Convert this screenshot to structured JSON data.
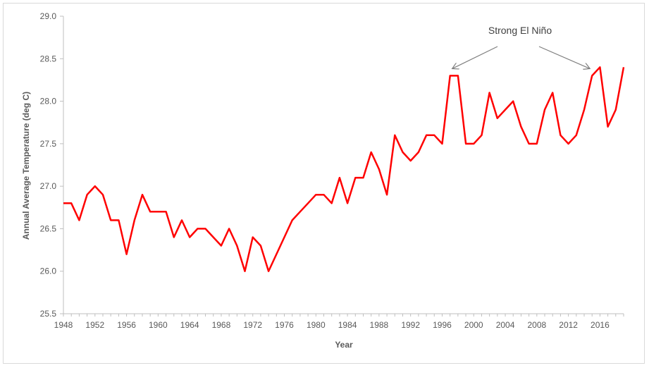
{
  "chart_data": {
    "type": "line",
    "title": "",
    "xlabel": "Year",
    "ylabel": "Annual Average Temperature (deg C)",
    "xlim": [
      1948,
      2019
    ],
    "ylim": [
      25.5,
      29.0
    ],
    "y_ticks": [
      "25.5",
      "26.0",
      "26.5",
      "27.0",
      "27.5",
      "28.0",
      "28.5",
      "29.0"
    ],
    "x_ticks": [
      "1948",
      "1952",
      "1956",
      "1960",
      "1964",
      "1968",
      "1972",
      "1976",
      "1980",
      "1984",
      "1988",
      "1992",
      "1996",
      "2000",
      "2004",
      "2008",
      "2012",
      "2016"
    ],
    "grid": false,
    "legend": "none",
    "colors": {
      "line": "#ff0000",
      "axis": "#bfbfbf",
      "annotation_arrow": "#7f7f7f"
    },
    "series": [
      {
        "x": [
          1948,
          1949,
          1950,
          1951,
          1952,
          1953,
          1954,
          1955,
          1956,
          1957,
          1958,
          1959,
          1960,
          1961,
          1962,
          1963,
          1964,
          1965,
          1966,
          1967,
          1968,
          1969,
          1970,
          1971,
          1972,
          1973,
          1974,
          1975,
          1976,
          1977,
          1978,
          1979,
          1980,
          1981,
          1982,
          1983,
          1984,
          1985,
          1986,
          1987,
          1988,
          1989,
          1990,
          1991,
          1992,
          1993,
          1994,
          1995,
          1996,
          1997,
          1998,
          1999,
          2000,
          2001,
          2002,
          2003,
          2004,
          2005,
          2006,
          2007,
          2008,
          2009,
          2010,
          2011,
          2012,
          2013,
          2014,
          2015,
          2016,
          2017,
          2018,
          2019
        ],
        "values": [
          26.8,
          26.8,
          26.6,
          26.9,
          27.0,
          26.9,
          26.6,
          26.6,
          26.2,
          26.6,
          26.9,
          26.7,
          26.7,
          26.7,
          26.4,
          26.6,
          26.4,
          26.5,
          26.5,
          26.4,
          26.3,
          26.5,
          26.3,
          26.0,
          26.4,
          26.3,
          26.0,
          26.2,
          26.4,
          26.6,
          26.7,
          26.8,
          26.9,
          26.9,
          26.8,
          27.1,
          26.8,
          27.1,
          27.1,
          27.4,
          27.2,
          26.9,
          27.6,
          27.4,
          27.3,
          27.4,
          27.6,
          27.6,
          27.5,
          28.3,
          28.3,
          27.5,
          27.5,
          27.6,
          28.1,
          27.8,
          27.9,
          28.0,
          27.7,
          27.5,
          27.5,
          27.9,
          28.1,
          27.6,
          27.5,
          27.6,
          27.9,
          28.3,
          28.4,
          27.7,
          27.9,
          28.4
        ]
      }
    ],
    "annotations": [
      {
        "text": "Strong El Niño",
        "points_to_years": [
          1997,
          2015
        ]
      }
    ]
  }
}
